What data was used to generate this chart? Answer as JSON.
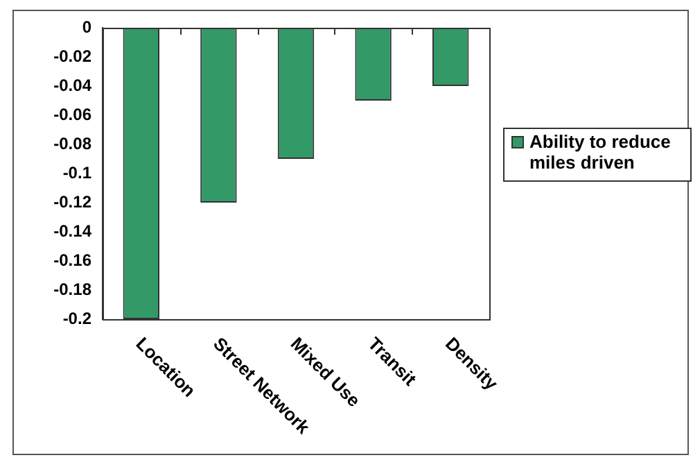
{
  "chart_data": {
    "type": "bar",
    "categories": [
      "Location",
      "Street Network",
      "Mixed Use",
      "Transit",
      "Density"
    ],
    "series": [
      {
        "name": "Ability to reduce miles driven",
        "color": "#339966",
        "values": [
          -0.2,
          -0.12,
          -0.09,
          -0.05,
          -0.04
        ]
      }
    ],
    "ylim": [
      -0.2,
      0
    ],
    "yticks": [
      0,
      -0.02,
      -0.04,
      -0.06,
      -0.08,
      -0.1,
      -0.12,
      -0.14,
      -0.16,
      -0.18,
      -0.2
    ],
    "grid": false,
    "legend": "right"
  }
}
